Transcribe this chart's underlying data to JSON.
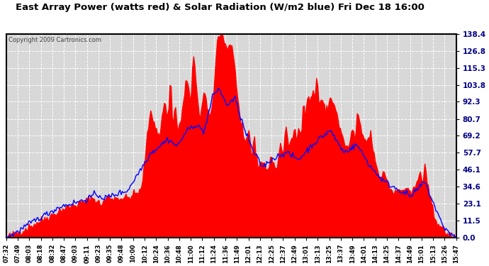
{
  "title": "East Array Power (watts red) & Solar Radiation (W/m2 blue) Fri Dec 18 16:00",
  "copyright": "Copyright 2009 Cartronics.com",
  "yticks": [
    0.0,
    11.5,
    23.1,
    34.6,
    46.1,
    57.7,
    69.2,
    80.7,
    92.3,
    103.8,
    115.3,
    126.8,
    138.4
  ],
  "ylim": [
    0.0,
    138.4
  ],
  "xtick_labels": [
    "07:32",
    "07:49",
    "08:03",
    "08:18",
    "08:32",
    "08:47",
    "09:03",
    "09:11",
    "09:23",
    "09:35",
    "09:48",
    "10:00",
    "10:12",
    "10:24",
    "10:36",
    "10:48",
    "11:00",
    "11:12",
    "11:24",
    "11:36",
    "11:49",
    "12:01",
    "12:13",
    "12:25",
    "12:37",
    "12:49",
    "13:01",
    "13:13",
    "13:25",
    "13:37",
    "13:49",
    "14:01",
    "14:13",
    "14:25",
    "14:37",
    "14:49",
    "15:01",
    "15:13",
    "15:26",
    "15:47"
  ],
  "bg_color": "#ffffff",
  "plot_bg_color": "#d8d8d8",
  "grid_color": "#ffffff",
  "fill_color": "#ff0000",
  "line_color": "#0000ff",
  "title_color": "#000000",
  "border_color": "#000000",
  "title_fontsize": 9.5,
  "tick_fontsize": 7.5,
  "xtick_fontsize": 6.5
}
